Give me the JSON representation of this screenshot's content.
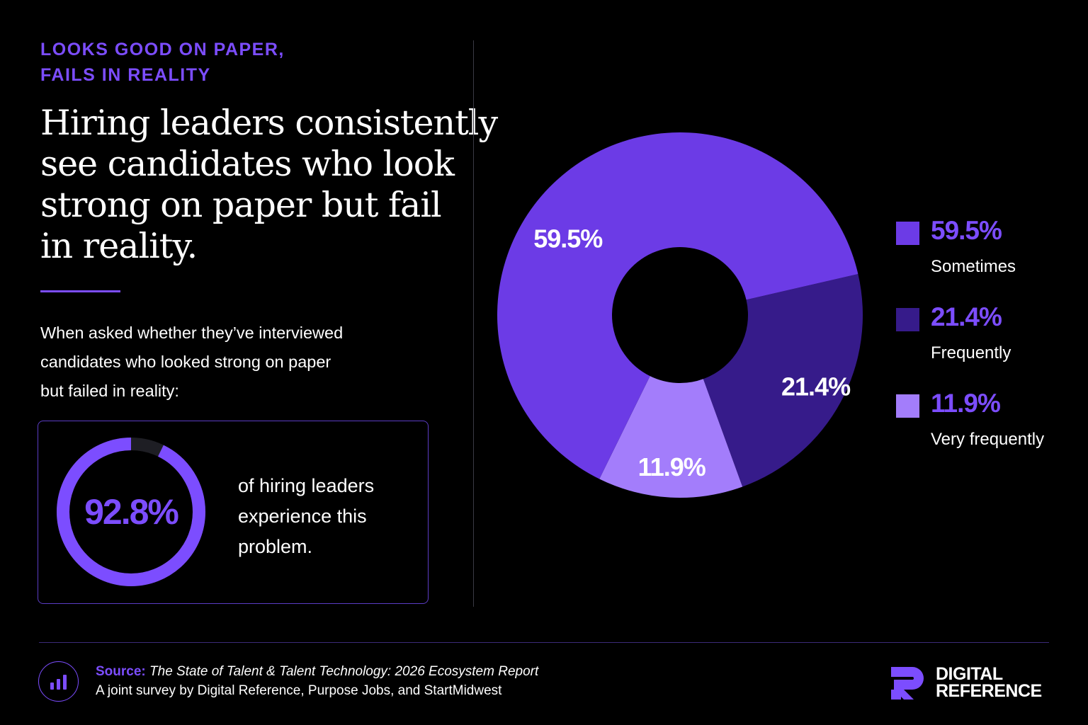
{
  "eyebrow": {
    "line1": "LOOKS GOOD ON PAPER,",
    "line2": "FAILS IN REALITY"
  },
  "headline": {
    "line1": "Hiring leaders consistently",
    "line2": "see candidates who look",
    "line3": "strong on paper but fail",
    "line4": "in reality."
  },
  "intro": {
    "line1": "When asked whether they’ve interviewed",
    "line2": "candidates who looked strong on paper",
    "line3": "but failed in reality:"
  },
  "stat": {
    "value": "92.8%",
    "fraction": 0.928,
    "caption1": "of hiring leaders",
    "caption2": "experience this",
    "caption3": "problem."
  },
  "chart_data": {
    "type": "pie",
    "variant": "donut",
    "title": "",
    "legend_position": "right",
    "slices": [
      {
        "label": "Sometimes",
        "value": 59.5,
        "display": "59.5%",
        "color": "#6c3be6"
      },
      {
        "label": "Frequently",
        "value": 21.4,
        "display": "21.4%",
        "color": "#361b8a"
      },
      {
        "label": "Very frequently",
        "value": 11.9,
        "display": "11.9%",
        "color": "#a37dfb"
      }
    ]
  },
  "footer": {
    "source_label": "Source:",
    "source_title": "The State of Talent & Talent Technology: 2026 Ecosystem Report",
    "source_sub": "A joint survey by Digital Reference, Purpose Jobs, and StartMidwest",
    "icon": "bar-chart-icon"
  },
  "brand": {
    "line1": "DIGITAL",
    "line2": "REFERENCE",
    "icon": "digital-reference-logo"
  },
  "colors": {
    "accent": "#7c4dff",
    "background": "#000000",
    "ring_track": "#1e1e24"
  }
}
